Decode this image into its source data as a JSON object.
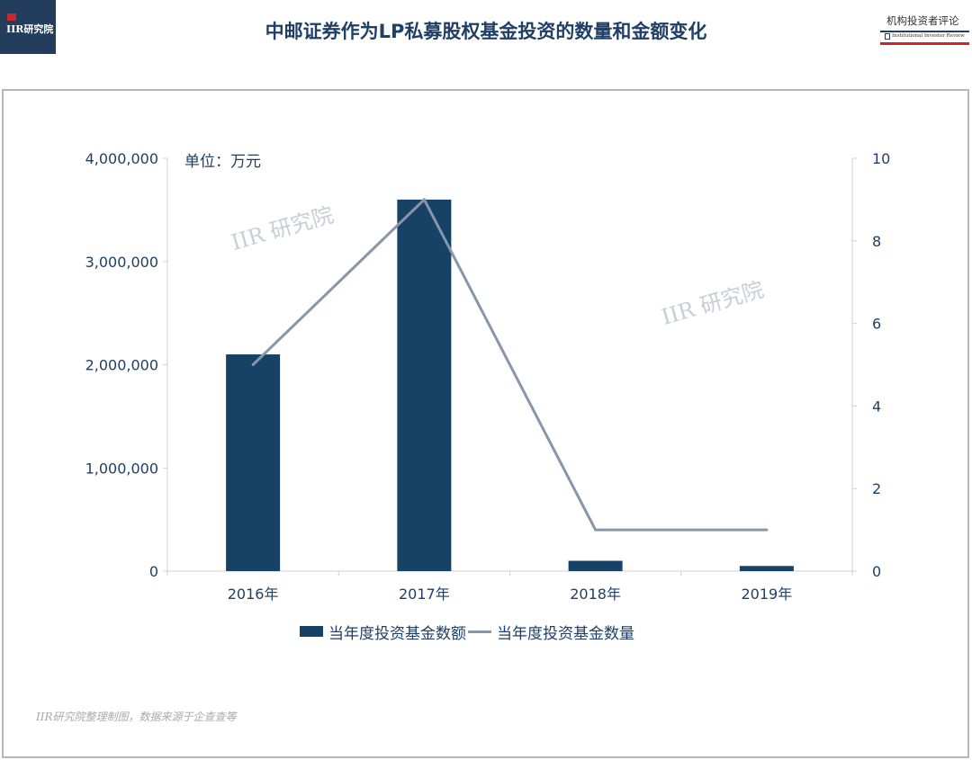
{
  "header": {
    "logo_text": "IIR研究院",
    "title": "中邮证券作为LP私募股权基金投资的数量和金额变化",
    "brand_cn": "机构投资者评论",
    "brand_en": "Institutional Investor Review"
  },
  "chart_data": {
    "type": "bar",
    "unit_label": "单位：万元",
    "categories": [
      "2016年",
      "2017年",
      "2018年",
      "2019年"
    ],
    "series": [
      {
        "name": "当年度投资基金数额",
        "type": "bar",
        "axis": "left",
        "color": "#174266",
        "values": [
          2100000,
          3600000,
          100000,
          50000
        ]
      },
      {
        "name": "当年度投资基金数量",
        "type": "line",
        "axis": "right",
        "color": "#8796ab",
        "values": [
          5,
          9,
          1,
          1
        ]
      }
    ],
    "y_left": {
      "min": 0,
      "max": 4000000,
      "ticks": [
        "0",
        "1,000,000",
        "2,000,000",
        "3,000,000",
        "4,000,000"
      ]
    },
    "y_right": {
      "min": 0,
      "max": 10,
      "ticks": [
        "0",
        "2",
        "4",
        "6",
        "8",
        "10"
      ]
    },
    "legend": [
      "当年度投资基金数额",
      "当年度投资基金数量"
    ],
    "watermarks": [
      "IIR 研究院",
      "IIR 研究院"
    ]
  },
  "footer": {
    "source": "IIR研究院整理制图，数据来源于企查查等"
  }
}
